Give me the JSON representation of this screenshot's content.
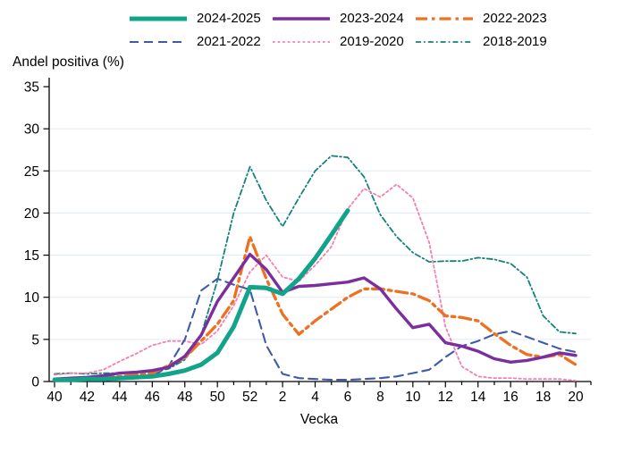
{
  "header": {
    "y_axis_title": "Andel positiva (%)"
  },
  "legend": [
    {
      "label": "2024-2025",
      "series_name": "2024-2025"
    },
    {
      "label": "2023-2024",
      "series_name": "2023-2024"
    },
    {
      "label": "2022-2023",
      "series_name": "2022-2023"
    },
    {
      "label": "2021-2022",
      "series_name": "2021-2022"
    },
    {
      "label": "2019-2020",
      "series_name": "2019-2020"
    },
    {
      "label": "2018-2019",
      "series_name": "2018-2019"
    }
  ],
  "colors": {
    "teal_thick": "#12a38b",
    "purple": "#7b2f9e",
    "orange": "#ef7020",
    "blue": "#3e5ba9",
    "pink": "#f47fb2",
    "dark_teal": "#15837a",
    "grid": "#e7eef5",
    "axis": "#000000"
  },
  "chart_data": {
    "type": "line",
    "title": "",
    "xlabel": "Vecka",
    "ylabel": "Andel positiva (%)",
    "grid": "horizontal",
    "ylim": [
      0,
      35
    ],
    "yticks": [
      0,
      5,
      10,
      15,
      20,
      25,
      30,
      35
    ],
    "x_categories": [
      "40",
      "41",
      "42",
      "43",
      "44",
      "45",
      "46",
      "47",
      "48",
      "49",
      "50",
      "51",
      "52",
      "1",
      "2",
      "3",
      "4",
      "5",
      "6",
      "7",
      "8",
      "9",
      "10",
      "11",
      "12",
      "13",
      "14",
      "15",
      "16",
      "17",
      "18",
      "19",
      "20"
    ],
    "x_tick_labels": [
      "40",
      "42",
      "44",
      "46",
      "48",
      "50",
      "52",
      "2",
      "4",
      "6",
      "8",
      "10",
      "12",
      "14",
      "16",
      "18",
      "20"
    ],
    "legend_position": "top",
    "series": [
      {
        "name": "2018-2019",
        "color": "#15837a",
        "width": 1.8,
        "dash": [
          6,
          3,
          1.8,
          3
        ],
        "values": [
          0.9,
          1.0,
          0.9,
          1.0,
          1.0,
          1.1,
          1.2,
          1.5,
          2.6,
          5.5,
          12.0,
          20.0,
          25.5,
          21.5,
          18.4,
          21.8,
          25.0,
          26.8,
          26.6,
          24.3,
          19.8,
          17.2,
          15.3,
          14.2,
          14.3,
          14.3,
          14.7,
          14.5,
          14.0,
          12.4,
          7.8,
          5.9,
          5.7
        ]
      },
      {
        "name": "2019-2020",
        "color": "#f47fb2",
        "width": 1.8,
        "dash": [
          2.6,
          3
        ],
        "values": [
          0.8,
          1.0,
          1.0,
          1.4,
          2.4,
          3.3,
          4.3,
          4.8,
          4.8,
          4.4,
          6.0,
          9.0,
          13.0,
          15.0,
          12.4,
          11.9,
          13.8,
          16.0,
          20.5,
          22.9,
          21.9,
          23.4,
          21.8,
          16.5,
          6.5,
          1.8,
          0.6,
          0.4,
          0.4,
          0.3,
          0.3,
          0.3,
          0.1
        ]
      },
      {
        "name": "2021-2022",
        "color": "#3e5ba9",
        "width": 2.1,
        "dash": [
          10,
          6
        ],
        "values": [
          0.1,
          0.1,
          0.2,
          0.2,
          0.3,
          0.4,
          0.6,
          1.8,
          5.0,
          10.8,
          12.2,
          11.5,
          10.9,
          4.3,
          0.9,
          0.4,
          0.3,
          0.2,
          0.2,
          0.3,
          0.4,
          0.6,
          1.0,
          1.4,
          2.9,
          4.2,
          4.8,
          5.6,
          6.0,
          5.3,
          4.6,
          3.9,
          3.5
        ]
      },
      {
        "name": "2022-2023",
        "color": "#ef7020",
        "width": 3.3,
        "dash": [
          13,
          5,
          3.5,
          5
        ],
        "values": [
          0.3,
          0.3,
          0.4,
          0.5,
          0.6,
          0.8,
          1.0,
          1.9,
          2.8,
          4.8,
          6.8,
          9.6,
          17.2,
          12.2,
          8.0,
          5.6,
          7.2,
          8.6,
          10.0,
          11.0,
          11.0,
          10.7,
          10.4,
          9.6,
          7.8,
          7.6,
          7.2,
          5.7,
          4.3,
          3.2,
          2.9,
          3.2,
          2.0
        ]
      },
      {
        "name": "2023-2024",
        "color": "#7b2f9e",
        "width": 3.4,
        "dash": null,
        "values": [
          0.3,
          0.4,
          0.5,
          0.7,
          1.0,
          1.1,
          1.3,
          1.7,
          3.0,
          5.5,
          9.5,
          12.3,
          15.1,
          13.3,
          10.6,
          11.3,
          11.4,
          11.6,
          11.8,
          12.3,
          11.0,
          8.6,
          6.4,
          6.8,
          4.6,
          4.2,
          3.6,
          2.7,
          2.3,
          2.5,
          2.9,
          3.4,
          3.1
        ]
      },
      {
        "name": "2024-2025",
        "color": "#12a38b",
        "width": 5,
        "dash": null,
        "values": [
          0.2,
          0.2,
          0.3,
          0.3,
          0.4,
          0.5,
          0.6,
          0.9,
          1.3,
          2.0,
          3.4,
          6.5,
          11.2,
          11.1,
          10.4,
          12.2,
          14.6,
          17.4,
          20.3,
          null,
          null,
          null,
          null,
          null,
          null,
          null,
          null,
          null,
          null,
          null,
          null,
          null,
          null
        ]
      }
    ]
  }
}
